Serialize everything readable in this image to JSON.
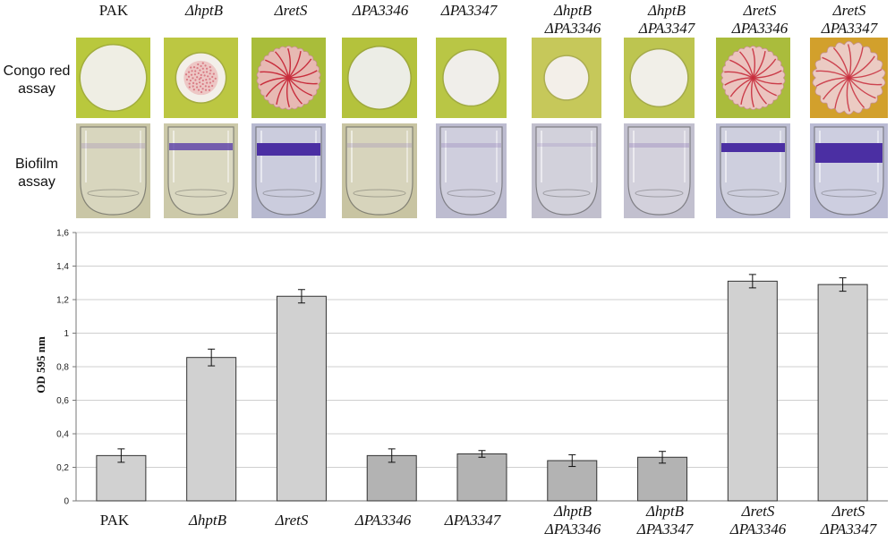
{
  "row_labels": {
    "congo": [
      "Congo red",
      "assay"
    ],
    "biofilm": [
      "Biofilm",
      "assay"
    ]
  },
  "strains": [
    {
      "lines": [
        "PAK"
      ],
      "italic": false,
      "congo": {
        "bg": "#b9c83d",
        "colony": "#efeee4",
        "size": 0.88,
        "red": 0,
        "edge": "smooth"
      },
      "biofilm": {
        "bg": "#c9c6a6",
        "ring": 0.25,
        "ring_color": "#8f78b7",
        "thick": 6
      }
    },
    {
      "lines": [
        "ΔhptB"
      ],
      "italic": true,
      "congo": {
        "bg": "#bcc742",
        "colony": "#f3efe9",
        "size": 0.66,
        "red": 0.55,
        "edge": "smooth"
      },
      "biofilm": {
        "bg": "#ccc9a9",
        "ring": 0.8,
        "ring_color": "#5a3ea8",
        "thick": 8
      }
    },
    {
      "lines": [
        "ΔretS"
      ],
      "italic": true,
      "congo": {
        "bg": "#a9bd3a",
        "colony": "#e7b9b3",
        "size": 0.86,
        "red": 1,
        "edge": "wrinkled"
      },
      "biofilm": {
        "bg": "#b7b9d0",
        "ring": 1,
        "ring_color": "#4b2fa3",
        "thick": 14
      }
    },
    {
      "lines": [
        "ΔPA3346"
      ],
      "italic": true,
      "congo": {
        "bg": "#b4c23c",
        "colony": "#ecede6",
        "size": 0.82,
        "red": 0,
        "edge": "smooth"
      },
      "biofilm": {
        "bg": "#c8c4a2",
        "ring": 0.25,
        "ring_color": "#8f78b7",
        "thick": 5
      }
    },
    {
      "lines": [
        "ΔPA3347"
      ],
      "italic": true,
      "congo": {
        "bg": "#b9c645",
        "colony": "#f0eeea",
        "size": 0.78,
        "red": 0,
        "edge": "smooth"
      },
      "biofilm": {
        "bg": "#bdbcd0",
        "ring": 0.3,
        "ring_color": "#8f78b7",
        "thick": 5
      }
    },
    {
      "lines": [
        "ΔhptB",
        "ΔPA3346"
      ],
      "italic": true,
      "congo": {
        "bg": "#c6c85a",
        "colony": "#f3efe9",
        "size": 0.62,
        "red": 0,
        "edge": "smooth"
      },
      "biofilm": {
        "bg": "#c1bfcd",
        "ring": 0.22,
        "ring_color": "#8f78b7",
        "thick": 4
      }
    },
    {
      "lines": [
        "ΔhptB",
        "ΔPA3347"
      ],
      "italic": true,
      "congo": {
        "bg": "#bdc550",
        "colony": "#f1efe8",
        "size": 0.8,
        "red": 0,
        "edge": "smooth"
      },
      "biofilm": {
        "bg": "#c2c0cf",
        "ring": 0.35,
        "ring_color": "#8f78b7",
        "thick": 5
      }
    },
    {
      "lines": [
        "ΔretS",
        "ΔPA3346"
      ],
      "italic": true,
      "congo": {
        "bg": "#aabc3c",
        "colony": "#ebc4bf",
        "size": 0.86,
        "red": 0.9,
        "edge": "wrinkled"
      },
      "biofilm": {
        "bg": "#bcbdd2",
        "ring": 1,
        "ring_color": "#4b2fa3",
        "thick": 10
      }
    },
    {
      "lines": [
        "ΔretS",
        "ΔPA3347"
      ],
      "italic": true,
      "congo": {
        "bg": "#d2a02c",
        "colony": "#ebcbc3",
        "size": 0.94,
        "red": 0.85,
        "edge": "scalloped"
      },
      "biofilm": {
        "bg": "#babbd4",
        "ring": 1,
        "ring_color": "#4b2fa3",
        "thick": 22
      }
    }
  ],
  "chart_data": {
    "type": "bar",
    "title": "",
    "xlabel": "",
    "ylabel": "OD 595 nm",
    "ylim": [
      0,
      1.6
    ],
    "yticks": [
      "0",
      "0,2",
      "0,4",
      "0,6",
      "0,8",
      "1",
      "1,2",
      "1,4",
      "1,6"
    ],
    "grid": true,
    "categories": [
      "PAK",
      "ΔhptB",
      "ΔretS",
      "ΔPA3346",
      "ΔPA3347",
      "ΔhptB ΔPA3346",
      "ΔhptB ΔPA3347",
      "ΔretS ΔPA3346",
      "ΔretS ΔPA3347"
    ],
    "values": [
      0.27,
      0.855,
      1.22,
      0.27,
      0.28,
      0.24,
      0.26,
      1.31,
      1.29
    ],
    "errors": [
      0.04,
      0.05,
      0.04,
      0.04,
      0.02,
      0.035,
      0.035,
      0.04,
      0.04
    ],
    "bar_colors": [
      "#d1d1d1",
      "#d1d1d1",
      "#d1d1d1",
      "#b3b3b3",
      "#b3b3b3",
      "#b3b3b3",
      "#b3b3b3",
      "#d1d1d1",
      "#d1d1d1"
    ]
  }
}
